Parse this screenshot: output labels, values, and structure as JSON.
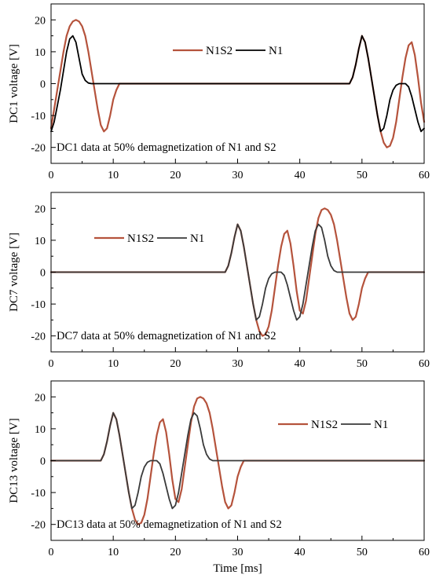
{
  "chart_data": [
    {
      "type": "line",
      "ylabel": "DC1 voltage [V]",
      "xlabel": "",
      "annotation": "DC1 data at 50% demagnetization of N1 and S2",
      "xlim": [
        0,
        60
      ],
      "ylim": [
        -25,
        25
      ],
      "xticks": [
        0,
        10,
        20,
        30,
        40,
        50,
        60
      ],
      "yticks": [
        -20,
        -10,
        0,
        10,
        20
      ],
      "legend_position": "top-center",
      "series": [
        {
          "name": "N1S2",
          "color": "#B5533C",
          "x": [
            0,
            0.5,
            1,
            1.5,
            2,
            2.5,
            3,
            3.5,
            4,
            4.5,
            5,
            5.5,
            6,
            6.5,
            7,
            7.5,
            8,
            8.5,
            9,
            9.5,
            10,
            10.5,
            11,
            12,
            48,
            48.5,
            49,
            49.5,
            50,
            50.5,
            51,
            51.5,
            52,
            52.5,
            53,
            53.5,
            54,
            54.5,
            55,
            55.5,
            56,
            56.5,
            57,
            57.5,
            58,
            58.5,
            59,
            59.5,
            60
          ],
          "y": [
            -14,
            -8,
            -2,
            4,
            10,
            15,
            18,
            19.5,
            20,
            19.5,
            18,
            15,
            10,
            4,
            -2,
            -8,
            -13,
            -15,
            -14,
            -10,
            -5,
            -2,
            0,
            0,
            0,
            2,
            6,
            11,
            15,
            13,
            8,
            2,
            -4,
            -10,
            -15,
            -18.5,
            -20,
            -19.5,
            -17,
            -12,
            -5,
            2,
            8,
            12,
            13,
            9,
            2,
            -6,
            -12
          ]
        },
        {
          "name": "N1",
          "color": "#000000",
          "x": [
            0,
            0.5,
            1,
            1.5,
            2,
            2.5,
            3,
            3.5,
            4,
            4.5,
            5,
            5.5,
            6,
            6.5,
            7,
            7.5,
            8,
            12,
            48,
            48.5,
            49,
            49.5,
            50,
            50.5,
            51,
            51.5,
            52,
            52.5,
            53,
            53.5,
            54,
            54.5,
            55,
            55.5,
            56,
            56.5,
            57,
            57.5,
            58,
            58.5,
            59,
            59.5,
            60
          ],
          "y": [
            -15,
            -12,
            -7,
            -2,
            4,
            10,
            14,
            15,
            13,
            8,
            3,
            1,
            0.2,
            0,
            0,
            0,
            0,
            0,
            0,
            2,
            6,
            11,
            15,
            13,
            8,
            2,
            -4,
            -10,
            -15,
            -14,
            -10,
            -5,
            -2,
            -0.5,
            0,
            0,
            0,
            -1,
            -4,
            -8,
            -12,
            -15,
            -14
          ]
        }
      ]
    },
    {
      "type": "line",
      "ylabel": "DC7 voltage [V]",
      "xlabel": "",
      "annotation": "DC7 data at 50% demagnetization of N1 and S2",
      "xlim": [
        0,
        60
      ],
      "ylim": [
        -25,
        25
      ],
      "xticks": [
        0,
        10,
        20,
        30,
        40,
        50,
        60
      ],
      "yticks": [
        -20,
        -10,
        0,
        10,
        20
      ],
      "legend_position": "top-left",
      "series": [
        {
          "name": "N1S2",
          "color": "#B5533C",
          "x": [
            0,
            28,
            28.5,
            29,
            29.5,
            30,
            30.5,
            31,
            31.5,
            32,
            32.5,
            33,
            33.5,
            34,
            34.5,
            35,
            35.5,
            36,
            36.5,
            37,
            37.5,
            38,
            38.5,
            39,
            39.5,
            40,
            40.5,
            41,
            41.5,
            42,
            42.5,
            43,
            43.5,
            44,
            44.5,
            45,
            45.5,
            46,
            46.5,
            47,
            47.5,
            48,
            48.5,
            49,
            49.5,
            50,
            50.5,
            51,
            52,
            60
          ],
          "y": [
            0,
            0,
            2,
            6,
            11,
            15,
            13,
            8,
            2,
            -4,
            -10,
            -15,
            -18.5,
            -20,
            -19.5,
            -17,
            -12,
            -5,
            2,
            8,
            12,
            13,
            9,
            2,
            -6,
            -12,
            -13,
            -9,
            -2,
            5,
            12,
            17,
            19.5,
            20,
            19.5,
            18,
            15,
            10,
            4,
            -2,
            -8,
            -13,
            -15,
            -14,
            -10,
            -5,
            -2,
            0,
            0,
            0
          ]
        },
        {
          "name": "N1",
          "color": "#3A3A3A",
          "x": [
            0,
            28,
            28.5,
            29,
            29.5,
            30,
            30.5,
            31,
            31.5,
            32,
            32.5,
            33,
            33.5,
            34,
            34.5,
            35,
            35.5,
            36,
            36.5,
            37,
            37.5,
            38,
            38.5,
            39,
            39.5,
            40,
            40.5,
            41,
            41.5,
            42,
            42.5,
            43,
            43.5,
            44,
            44.5,
            45,
            45.5,
            46,
            46.5,
            47,
            60
          ],
          "y": [
            0,
            0,
            2,
            6,
            11,
            15,
            13,
            8,
            2,
            -4,
            -10,
            -15,
            -14,
            -10,
            -5,
            -2,
            -0.5,
            0,
            0,
            0,
            -1,
            -4,
            -8,
            -12,
            -15,
            -14,
            -10,
            -4,
            2,
            8,
            13,
            15,
            14,
            10,
            5,
            2,
            0.5,
            0,
            0,
            0,
            0
          ]
        }
      ]
    },
    {
      "type": "line",
      "ylabel": "DC13 voltage [V]",
      "xlabel": "Time [ms]",
      "annotation": "DC13 data at 50% demagnetization of N1 and S2",
      "xlim": [
        0,
        60
      ],
      "ylim": [
        -25,
        25
      ],
      "xticks": [
        0,
        10,
        20,
        30,
        40,
        50,
        60
      ],
      "yticks": [
        -20,
        -10,
        0,
        10,
        20
      ],
      "legend_position": "top-right",
      "series": [
        {
          "name": "N1S2",
          "color": "#B5533C",
          "x": [
            0,
            8,
            8.5,
            9,
            9.5,
            10,
            10.5,
            11,
            11.5,
            12,
            12.5,
            13,
            13.5,
            14,
            14.5,
            15,
            15.5,
            16,
            16.5,
            17,
            17.5,
            18,
            18.5,
            19,
            19.5,
            20,
            20.5,
            21,
            21.5,
            22,
            22.5,
            23,
            23.5,
            24,
            24.5,
            25,
            25.5,
            26,
            26.5,
            27,
            27.5,
            28,
            28.5,
            29,
            29.5,
            30,
            30.5,
            31,
            32,
            60
          ],
          "y": [
            0,
            0,
            2,
            6,
            11,
            15,
            13,
            8,
            2,
            -4,
            -10,
            -15,
            -18.5,
            -20,
            -19.5,
            -17,
            -12,
            -5,
            2,
            8,
            12,
            13,
            9,
            2,
            -6,
            -12,
            -13,
            -9,
            -2,
            5,
            12,
            17,
            19.5,
            20,
            19.5,
            18,
            15,
            10,
            4,
            -2,
            -8,
            -13,
            -15,
            -14,
            -10,
            -5,
            -2,
            0,
            0,
            0
          ]
        },
        {
          "name": "N1",
          "color": "#3A3A3A",
          "x": [
            0,
            8,
            8.5,
            9,
            9.5,
            10,
            10.5,
            11,
            11.5,
            12,
            12.5,
            13,
            13.5,
            14,
            14.5,
            15,
            15.5,
            16,
            16.5,
            17,
            17.5,
            18,
            18.5,
            19,
            19.5,
            20,
            20.5,
            21,
            21.5,
            22,
            22.5,
            23,
            23.5,
            24,
            24.5,
            25,
            25.5,
            26,
            26.5,
            27,
            60
          ],
          "y": [
            0,
            0,
            2,
            6,
            11,
            15,
            13,
            8,
            2,
            -4,
            -10,
            -15,
            -14,
            -10,
            -5,
            -2,
            -0.5,
            0,
            0,
            0,
            -1,
            -4,
            -8,
            -12,
            -15,
            -14,
            -10,
            -4,
            2,
            8,
            13,
            15,
            14,
            10,
            5,
            2,
            0.5,
            0,
            0,
            0,
            0
          ]
        }
      ]
    }
  ]
}
